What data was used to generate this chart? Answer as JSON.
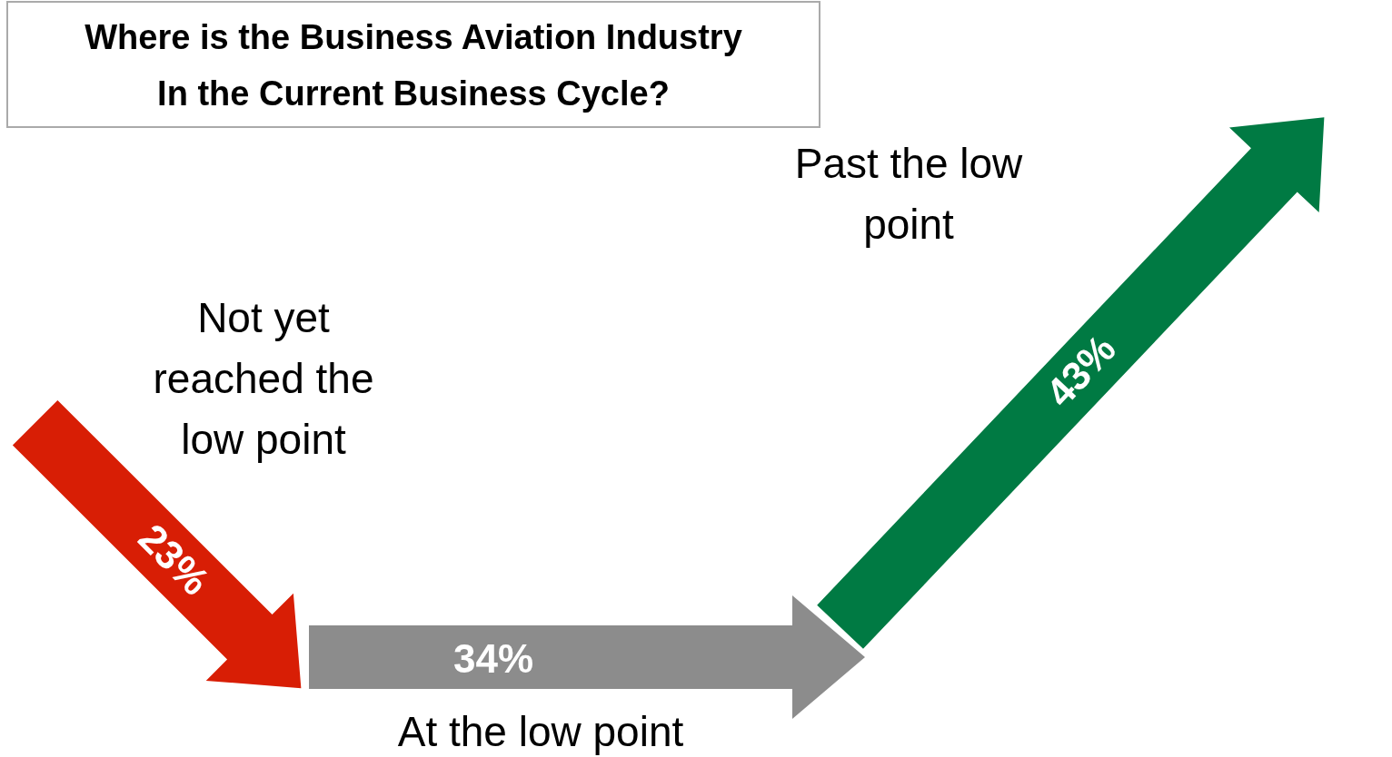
{
  "chart_data": {
    "type": "other",
    "title": "Where is the Business Aviation Industry In the Current Business Cycle?",
    "categories": [
      "Not yet reached the low point",
      "At the low point",
      "Past the low point"
    ],
    "values": [
      23,
      34,
      43
    ],
    "value_labels": [
      "23%",
      "34%",
      "43%"
    ],
    "colors": [
      "#d81e05",
      "#8c8c8c",
      "#007a43"
    ]
  }
}
